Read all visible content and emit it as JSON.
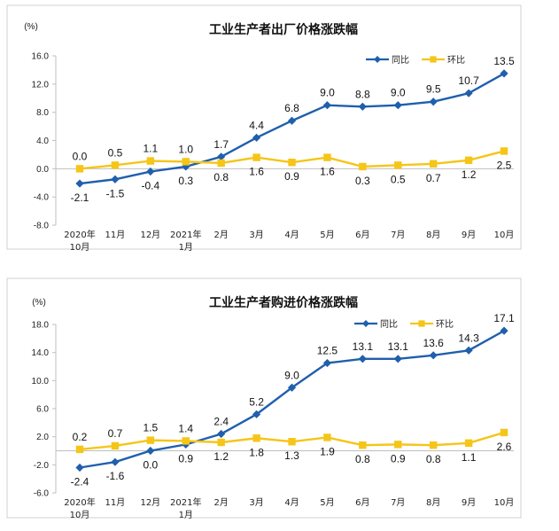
{
  "chart_data": [
    {
      "type": "line",
      "title": "工业生产者出厂价格涨跌幅",
      "unit_label": "(%)",
      "ylim": [
        -8.0,
        16.0
      ],
      "yticks": [
        "16.0",
        "12.0",
        "8.0",
        "4.0",
        "0.0",
        "-4.0",
        "-8.0"
      ],
      "ytick_values": [
        16,
        12,
        8,
        4,
        0,
        -4,
        -8
      ],
      "categories": [
        [
          "2020年",
          "10月"
        ],
        [
          "11月"
        ],
        [
          "12月"
        ],
        [
          "2021年",
          "1月"
        ],
        [
          "2月"
        ],
        [
          "3月"
        ],
        [
          "4月"
        ],
        [
          "5月"
        ],
        [
          "6月"
        ],
        [
          "7月"
        ],
        [
          "8月"
        ],
        [
          "9月"
        ],
        [
          "10月"
        ]
      ],
      "legend_position": "top-right",
      "grid": false,
      "series": [
        {
          "name": "同比",
          "color": "#1F5FAD",
          "marker": "diamond",
          "values": [
            -2.1,
            -1.5,
            -0.4,
            0.3,
            1.7,
            4.4,
            6.8,
            9.0,
            8.8,
            9.0,
            9.5,
            10.7,
            13.5
          ],
          "labels": [
            "-2.1",
            "-1.5",
            "-0.4",
            "0.3",
            "1.7",
            "4.4",
            "6.8",
            "9.0",
            "8.8",
            "9.0",
            "9.5",
            "10.7",
            "13.5"
          ]
        },
        {
          "name": "环比",
          "color": "#F5C518",
          "marker": "square",
          "values": [
            0.0,
            0.5,
            1.1,
            1.0,
            0.8,
            1.6,
            0.9,
            1.6,
            0.3,
            0.5,
            0.7,
            1.2,
            2.5
          ],
          "labels": [
            "0.0",
            "0.5",
            "1.1",
            "1.0",
            "0.8",
            "1.6",
            "0.9",
            "1.6",
            "0.3",
            "0.5",
            "0.7",
            "1.2",
            "2.5"
          ]
        }
      ]
    },
    {
      "type": "line",
      "title": "工业生产者购进价格涨跌幅",
      "unit_label": "(%)",
      "ylim": [
        -6.0,
        18.0
      ],
      "yticks": [
        "18.0",
        "14.0",
        "10.0",
        "6.0",
        "2.0",
        "-2.0",
        "-6.0"
      ],
      "ytick_values": [
        18,
        14,
        10,
        6,
        2,
        -2,
        -6
      ],
      "categories": [
        [
          "2020年",
          "10月"
        ],
        [
          "11月"
        ],
        [
          "12月"
        ],
        [
          "2021年",
          "1月"
        ],
        [
          "2月"
        ],
        [
          "3月"
        ],
        [
          "4月"
        ],
        [
          "5月"
        ],
        [
          "6月"
        ],
        [
          "7月"
        ],
        [
          "8月"
        ],
        [
          "9月"
        ],
        [
          "10月"
        ]
      ],
      "legend_position": "top-right",
      "grid": false,
      "series": [
        {
          "name": "同比",
          "color": "#1F5FAD",
          "marker": "diamond",
          "values": [
            -2.4,
            -1.6,
            0.0,
            0.9,
            2.4,
            5.2,
            9.0,
            12.5,
            13.1,
            13.1,
            13.6,
            14.3,
            17.1
          ],
          "labels": [
            "-2.4",
            "-1.6",
            "0.0",
            "0.9",
            "2.4",
            "5.2",
            "9.0",
            "12.5",
            "13.1",
            "13.1",
            "13.6",
            "14.3",
            "17.1"
          ]
        },
        {
          "name": "环比",
          "color": "#F5C518",
          "marker": "square",
          "values": [
            0.2,
            0.7,
            1.5,
            1.4,
            1.2,
            1.8,
            1.3,
            1.9,
            0.8,
            0.9,
            0.8,
            1.1,
            2.6
          ],
          "labels": [
            "0.2",
            "0.7",
            "1.5",
            "1.4",
            "1.2",
            "1.8",
            "1.3",
            "1.9",
            "0.8",
            "0.9",
            "0.8",
            "1.1",
            "2.6"
          ]
        }
      ]
    }
  ]
}
